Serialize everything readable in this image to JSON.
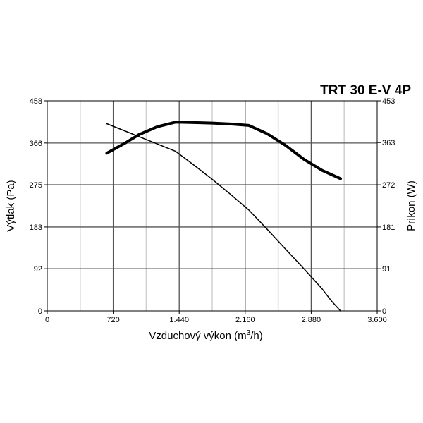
{
  "chart_data": {
    "type": "line",
    "title": "TRT 30 E-V 4P",
    "xlabel": "Vzduchový výkon (m",
    "xlabel_sup": "3",
    "xlabel_tail": "/h)",
    "ylabel": "Výtlak (Pa)",
    "y2label": "Príkon (W)",
    "xlim": [
      0,
      3600
    ],
    "ylim": [
      0,
      458
    ],
    "y2lim": [
      0,
      453
    ],
    "x_ticks": [
      0,
      720,
      1440,
      2160,
      2880,
      3600
    ],
    "x_tick_labels": [
      "0",
      "720",
      "1.440",
      "2.160",
      "2.880",
      "3.600"
    ],
    "y_ticks": [
      0,
      92,
      183,
      275,
      366,
      458
    ],
    "y_tick_labels": [
      "0",
      "92",
      "183",
      "275",
      "366",
      "458"
    ],
    "y2_ticks": [
      0,
      91,
      181,
      272,
      363,
      453
    ],
    "y2_tick_labels": [
      "0",
      "91",
      "181",
      "272",
      "363",
      "453"
    ],
    "grid": true,
    "series": [
      {
        "axis": "left",
        "style": "thin",
        "x": [
          650,
          900,
          1150,
          1400,
          1600,
          1800,
          2000,
          2200,
          2400,
          2600,
          2800,
          3000,
          3100,
          3200
        ],
        "y": [
          408,
          388,
          368,
          348,
          318,
          287,
          254,
          220,
          178,
          135,
          92,
          48,
          22,
          0
        ]
      },
      {
        "axis": "right",
        "style": "bold",
        "x": [
          650,
          850,
          1000,
          1200,
          1400,
          1600,
          1800,
          2000,
          2200,
          2400,
          2600,
          2800,
          3000,
          3200
        ],
        "y": [
          340,
          362,
          380,
          397,
          407,
          406,
          405,
          403,
          400,
          382,
          357,
          327,
          303,
          285
        ]
      }
    ]
  }
}
